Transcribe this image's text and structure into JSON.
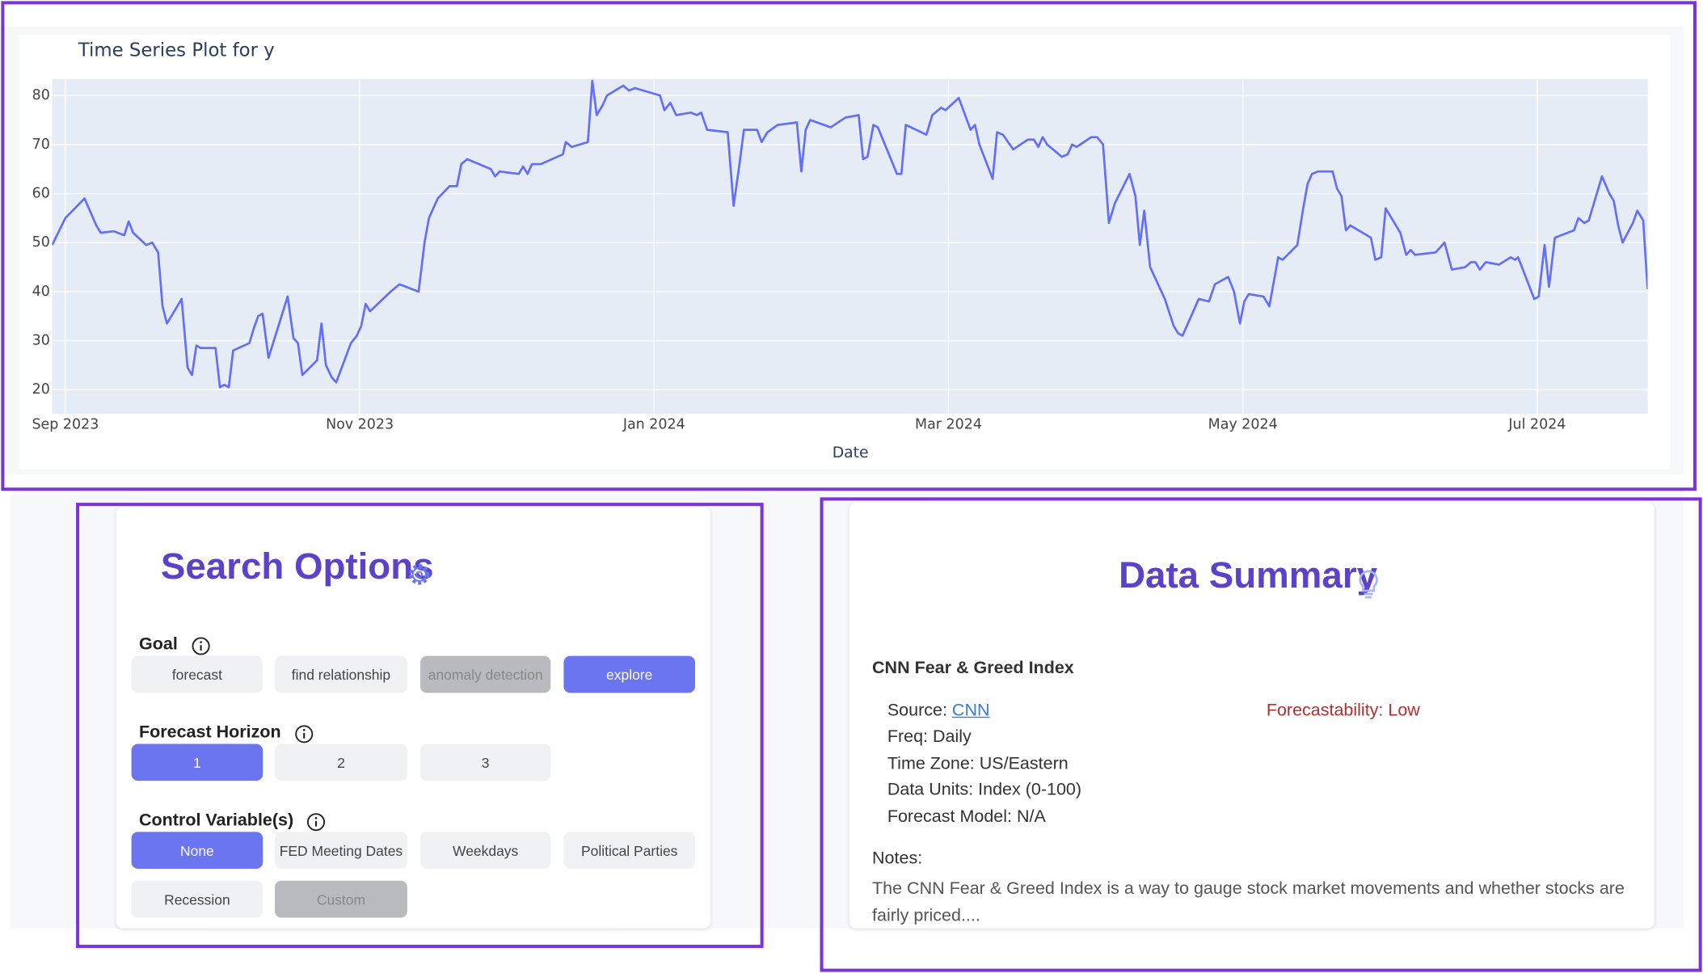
{
  "chart_data": {
    "type": "line",
    "title": "Time Series Plot for y",
    "x_label": "Date",
    "color": "#636efa",
    "grid": true,
    "xlim": [
      -0.09,
      10.75
    ],
    "ylim": [
      15.1,
      83.3
    ],
    "xticks": [
      {
        "value": 0,
        "label": "Sep 2023"
      },
      {
        "value": 2,
        "label": "Nov 2023"
      },
      {
        "value": 4,
        "label": "Jan 2024"
      },
      {
        "value": 6,
        "label": "Mar 2024"
      },
      {
        "value": 8,
        "label": "May 2024"
      },
      {
        "value": 10,
        "label": "Jul 2024"
      }
    ],
    "yticks": [
      20,
      30,
      40,
      50,
      60,
      70,
      80
    ],
    "x": [
      -0.09,
      0,
      0.13,
      0.21,
      0.24,
      0.33,
      0.4,
      0.43,
      0.46,
      0.55,
      0.59,
      0.63,
      0.66,
      0.69,
      0.79,
      0.83,
      0.86,
      0.89,
      0.92,
      1.02,
      1.05,
      1.08,
      1.11,
      1.14,
      1.25,
      1.28,
      1.31,
      1.34,
      1.38,
      1.51,
      1.55,
      1.58,
      1.61,
      1.71,
      1.74,
      1.77,
      1.81,
      1.84,
      1.94,
      1.98,
      2.01,
      2.04,
      2.07,
      2.21,
      2.27,
      2.4,
      2.44,
      2.47,
      2.53,
      2.61,
      2.66,
      2.69,
      2.73,
      2.77,
      2.89,
      2.92,
      2.95,
      3.08,
      3.11,
      3.14,
      3.17,
      3.23,
      3.38,
      3.4,
      3.44,
      3.55,
      3.58,
      3.61,
      3.65,
      3.68,
      3.79,
      3.83,
      3.87,
      4.04,
      4.07,
      4.11,
      4.15,
      4.25,
      4.29,
      4.32,
      4.36,
      4.5,
      4.54,
      4.58,
      4.61,
      4.7,
      4.73,
      4.77,
      4.84,
      4.97,
      5,
      5.03,
      5.06,
      5.2,
      5.3,
      5.39,
      5.42,
      5.45,
      5.49,
      5.52,
      5.65,
      5.68,
      5.71,
      5.85,
      5.89,
      5.95,
      5.98,
      6.07,
      6.15,
      6.18,
      6.21,
      6.3,
      6.33,
      6.37,
      6.44,
      6.54,
      6.58,
      6.61,
      6.64,
      6.67,
      6.77,
      6.81,
      6.84,
      6.87,
      6.97,
      7.01,
      7.05,
      7.09,
      7.13,
      7.23,
      7.27,
      7.3,
      7.33,
      7.37,
      7.47,
      7.53,
      7.56,
      7.59,
      7.7,
      7.77,
      7.81,
      7.9,
      7.94,
      7.98,
      8.01,
      8.04,
      8.14,
      8.18,
      8.24,
      8.27,
      8.37,
      8.41,
      8.44,
      8.47,
      8.51,
      8.61,
      8.64,
      8.67,
      8.7,
      8.73,
      8.87,
      8.9,
      8.94,
      8.97,
      9.07,
      9.11,
      9.14,
      9.17,
      9.31,
      9.37,
      9.42,
      9.51,
      9.55,
      9.58,
      9.61,
      9.65,
      9.74,
      9.82,
      9.85,
      9.87,
      9.98,
      10.01,
      10.05,
      10.08,
      10.12,
      10.25,
      10.28,
      10.32,
      10.35,
      10.44,
      10.49,
      10.52,
      10.55,
      10.58,
      10.65,
      10.68,
      10.72,
      10.75
    ],
    "values": [
      49.5,
      55,
      59,
      53.5,
      52,
      52.3,
      51.5,
      54.3,
      52,
      49.5,
      50,
      48,
      37,
      33.5,
      38.5,
      24.5,
      23,
      29,
      28.5,
      28.5,
      20.5,
      21,
      20.5,
      28,
      29.5,
      32.5,
      35,
      35.5,
      26.5,
      39,
      30.5,
      29.5,
      23,
      26,
      33.5,
      25,
      22.5,
      21.5,
      29.5,
      31,
      33,
      37.5,
      36,
      40,
      41.5,
      40,
      50,
      55,
      59,
      61.5,
      61.5,
      66,
      67,
      66.5,
      65,
      63.5,
      64.5,
      64,
      65.5,
      64,
      66,
      66,
      68,
      70.5,
      69.5,
      70.5,
      83,
      76,
      78,
      80,
      82,
      81,
      81.5,
      80,
      77,
      78.5,
      76,
      76.5,
      76,
      76.5,
      73,
      72.5,
      57.5,
      66,
      73,
      73,
      70.5,
      72.5,
      74,
      74.5,
      64.5,
      73,
      75,
      73.5,
      75.5,
      76,
      67,
      67.5,
      74,
      73.5,
      64,
      64,
      74,
      72,
      76,
      77.5,
      77,
      79.5,
      73,
      74,
      70,
      63,
      72.5,
      72,
      69,
      71,
      71,
      69.5,
      71.5,
      70,
      67.5,
      68,
      70,
      69.5,
      71.5,
      71.5,
      70,
      54,
      58,
      64,
      59.5,
      49.5,
      56.5,
      45,
      38.5,
      33,
      31.5,
      31,
      38.5,
      38,
      41.5,
      43,
      40,
      33.5,
      38,
      39.5,
      39,
      37,
      47,
      46.5,
      49.5,
      57,
      62,
      64,
      64.5,
      64.5,
      61,
      59.5,
      52.5,
      53.5,
      51,
      46.5,
      47,
      57,
      52,
      47.5,
      48.5,
      47.5,
      48,
      50,
      44.5,
      45,
      46,
      46,
      44.5,
      46,
      45.5,
      47,
      46.5,
      47,
      38.5,
      39,
      49.5,
      41,
      51,
      52.5,
      55,
      54,
      54.5,
      63.5,
      60,
      58.5,
      53.5,
      50,
      54,
      56.5,
      54.5,
      40.5
    ]
  },
  "search_options": {
    "title": "Search Options",
    "groups": [
      {
        "label": "Goal",
        "options": [
          "forecast",
          "find relationship",
          "anomaly detection",
          "explore"
        ],
        "selected": 3,
        "disabled": [
          2
        ]
      },
      {
        "label": "Forecast Horizon",
        "options": [
          "1",
          "2",
          "3"
        ],
        "selected": 0,
        "disabled": []
      },
      {
        "label": "Control Variable(s)",
        "options": [
          "None",
          "FED Meeting Dates",
          "Weekdays",
          "Political Parties",
          "Recession",
          "Custom"
        ],
        "selected": 0,
        "disabled": [
          5
        ]
      }
    ]
  },
  "data_summary": {
    "title": "Data Summary",
    "dataset": "CNN Fear & Greed Index",
    "source_label": "Source:",
    "source": "CNN",
    "details": [
      "Freq: Daily",
      "Time Zone: US/Eastern",
      "Data Units: Index (0-100)",
      "Forecast Model: N/A"
    ],
    "forecastability": "Forecastability: Low",
    "notes_label": "Notes:",
    "notes": "The CNN Fear & Greed Index is a way to gauge stock market movements and whether stocks are fairly priced...."
  }
}
